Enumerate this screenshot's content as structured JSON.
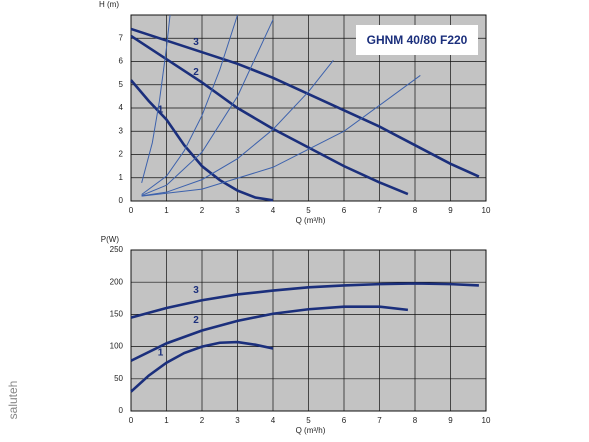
{
  "chart_data": [
    {
      "type": "line",
      "title": "GHNM 40/80 F220",
      "y_label": "H (m)",
      "x_label": "Q (m³/h)",
      "xlim": [
        0,
        10
      ],
      "ylim": [
        0,
        8
      ],
      "xticks": [
        0,
        1,
        2,
        3,
        4,
        5,
        6,
        7,
        8,
        9,
        10
      ],
      "yticks": [
        0,
        1,
        2,
        3,
        4,
        5,
        6,
        7
      ],
      "grid": true,
      "series": [
        {
          "name": "1",
          "color": "#1b2f7c",
          "x": [
            0,
            0.5,
            1,
            1.5,
            2,
            2.5,
            3,
            3.5,
            4
          ],
          "values": [
            5.2,
            4.3,
            3.5,
            2.4,
            1.5,
            0.9,
            0.45,
            0.15,
            0.03
          ]
        },
        {
          "name": "2",
          "color": "#1b2f7c",
          "x": [
            0,
            1,
            2,
            3,
            4,
            5,
            6,
            7,
            7.8
          ],
          "values": [
            7.1,
            6.1,
            5.1,
            4.0,
            3.1,
            2.3,
            1.5,
            0.8,
            0.3
          ]
        },
        {
          "name": "3",
          "color": "#1b2f7c",
          "x": [
            0,
            1,
            2,
            3,
            4,
            5,
            6,
            7,
            8,
            9,
            9.8
          ],
          "values": [
            7.4,
            6.9,
            6.4,
            5.9,
            5.3,
            4.6,
            3.9,
            3.2,
            2.4,
            1.6,
            1.05
          ]
        },
        {
          "color": "#3d62ad",
          "x": [
            0.3,
            0.6,
            0.8,
            1.0,
            1.1
          ],
          "values": [
            0.78,
            2.5,
            4.3,
            6.6,
            8
          ]
        },
        {
          "color": "#3d62ad",
          "x": [
            0.3,
            1,
            1.5,
            2,
            2.5,
            3
          ],
          "values": [
            0.28,
            1.07,
            2.16,
            3.68,
            5.64,
            8
          ]
        },
        {
          "color": "#3d62ad",
          "x": [
            0.3,
            1,
            2,
            3,
            4
          ],
          "values": [
            0.24,
            0.68,
            2.1,
            4.5,
            7.8
          ]
        },
        {
          "color": "#3d62ad",
          "x": [
            0.3,
            1,
            2,
            3,
            4,
            5,
            5.7
          ],
          "values": [
            0.22,
            0.38,
            0.92,
            1.82,
            3.08,
            4.7,
            6.05
          ]
        },
        {
          "color": "#3d62ad",
          "x": [
            0.3,
            2,
            4,
            6,
            8.15
          ],
          "values": [
            0.21,
            0.51,
            1.45,
            3.0,
            5.4
          ]
        }
      ]
    },
    {
      "type": "line",
      "y_label": "P(W)",
      "x_label": "Q (m³/h)",
      "xlim": [
        0,
        10
      ],
      "ylim": [
        0,
        250
      ],
      "xticks": [
        0,
        1,
        2,
        3,
        4,
        5,
        6,
        7,
        8,
        9,
        10
      ],
      "yticks": [
        0,
        50,
        100,
        150,
        200,
        250
      ],
      "grid": true,
      "series": [
        {
          "name": "1",
          "color": "#1b2f7c",
          "x": [
            0,
            0.5,
            1,
            1.5,
            2,
            2.5,
            3,
            3.5,
            4
          ],
          "values": [
            30,
            55,
            75,
            90,
            100,
            106,
            107,
            103,
            97
          ]
        },
        {
          "name": "2",
          "color": "#1b2f7c",
          "x": [
            0,
            1,
            2,
            3,
            4,
            5,
            6,
            7,
            7.8
          ],
          "values": [
            78,
            105,
            125,
            140,
            151,
            158,
            162,
            162,
            157
          ]
        },
        {
          "name": "3",
          "color": "#1b2f7c",
          "x": [
            0,
            1,
            2,
            3,
            4,
            5,
            6,
            7,
            8,
            9,
            9.8
          ],
          "values": [
            145,
            160,
            172,
            181,
            187,
            192,
            195,
            197,
            198,
            197,
            195
          ]
        }
      ]
    }
  ],
  "watermark": "saluteh"
}
